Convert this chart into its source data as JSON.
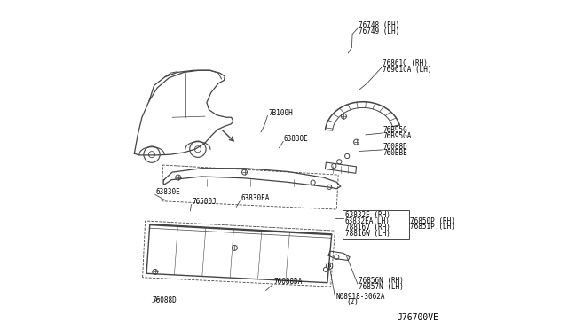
{
  "bg_color": "#ffffff",
  "line_color": "#444444",
  "text_color": "#000000",
  "diagram_id": "J76700VE",
  "font_size": 5.5,
  "labels": {
    "76748_rh": "76748 (RH)",
    "76749_lh": "76749 (LH)",
    "76861c_rh": "76861C (RH)",
    "76961ca_lh": "76961CA (LH)",
    "76b95g": "76B95G",
    "76b95ga": "76B95GA",
    "76088d_1": "76088D",
    "760bbe": "760BBE",
    "63832e_rh": "63832E (RH)",
    "63832ea_lh": "63832EA(LH)",
    "78816v_rh": "78816V (RH)",
    "78816w_lh": "78816W (LH)",
    "76850p_rh": "76850P (RH)",
    "76851p_lh": "76851P (LH)",
    "76856n_rh": "76856N (RH)",
    "76857n_lh": "76857N (LH)",
    "n08918": "N08918-3062A",
    "qty": "(2)",
    "7b100h": "7B100H",
    "63830e_top": "63830E",
    "63830ea": "63830EA",
    "63830e_left": "63830E",
    "76500j": "76500J",
    "76088da": "76088DA",
    "76088d_bot": "76088D",
    "diagram_id": "J76700VE"
  }
}
